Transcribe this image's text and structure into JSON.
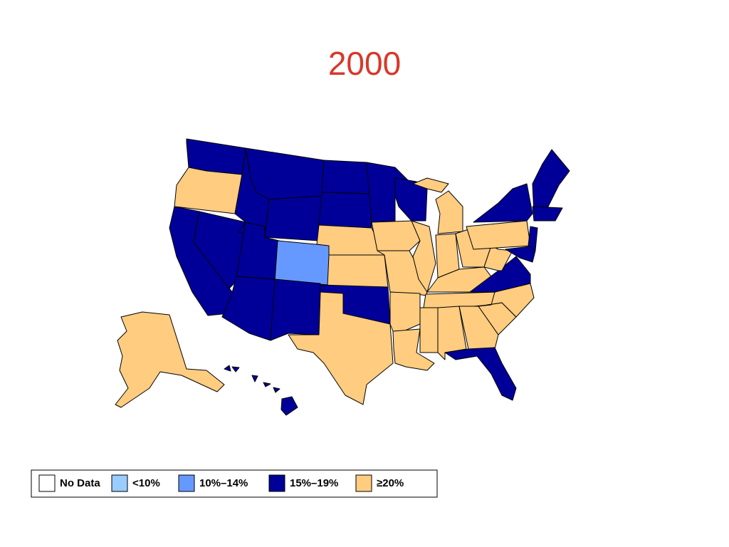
{
  "title": "2000",
  "legend": {
    "items": [
      {
        "label": "No Data",
        "color": "#ffffff"
      },
      {
        "label": "<10%",
        "color": "#99ccff"
      },
      {
        "label": "10%–14%",
        "color": "#6699ff"
      },
      {
        "label": "15%–19%",
        "color": "#000099"
      },
      {
        "label": "≥20%",
        "color": "#ffcc80"
      }
    ]
  }
}
